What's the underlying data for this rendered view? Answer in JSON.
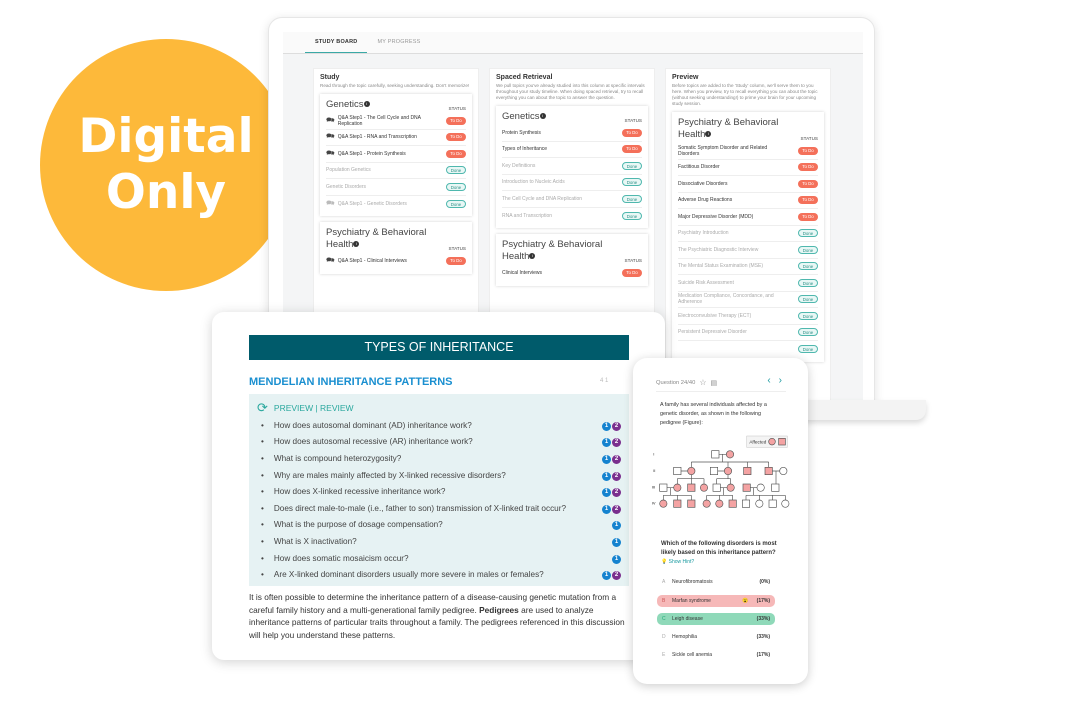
{
  "badge": {
    "line1": "Digital",
    "line2": "Only",
    "color": "#FDB93A"
  },
  "laptop": {
    "tabs": [
      {
        "label": "STUDY BOARD",
        "active": true
      },
      {
        "label": "MY PROGRESS",
        "active": false
      }
    ],
    "columns": [
      {
        "title": "Study",
        "desc": "Read through the topic carefully, seeking understanding. Don't memorize!",
        "cards": [
          {
            "title": "Genetics",
            "status_header": "STATUS",
            "items": [
              {
                "label": "Q&A Step1 - The Cell Cycle and DNA Replication",
                "qa": true,
                "status": "To Do"
              },
              {
                "label": "Q&A Step1 - RNA and Transcription",
                "qa": true,
                "status": "To Do"
              },
              {
                "label": "Q&A Step1 - Protein Synthesis",
                "qa": true,
                "status": "To Do"
              },
              {
                "label": "Population Genetics",
                "qa": false,
                "status": "Done"
              },
              {
                "label": "Genetic Disorders",
                "qa": false,
                "status": "Done"
              },
              {
                "label": "Q&A Step1 - Genetic Disorders",
                "qa": true,
                "status": "Done"
              }
            ]
          },
          {
            "title": "Psychiatry & Behavioral Health",
            "status_header": "STATUS",
            "items": [
              {
                "label": "Q&A Step1 - Clinical Interviews",
                "qa": true,
                "status": "To Do"
              }
            ]
          }
        ]
      },
      {
        "title": "Spaced Retrieval",
        "desc": "We pull topics you've already studied into this column at specific intervals throughout your study timeline. When doing spaced retrieval, try to recall everything you can about the topic to answer the question.",
        "cards": [
          {
            "title": "Genetics",
            "status_header": "STATUS",
            "items": [
              {
                "label": "Protein Synthesis",
                "qa": false,
                "status": "To Do"
              },
              {
                "label": "Types of Inheritance",
                "qa": false,
                "status": "To Do"
              },
              {
                "label": "Key Definitions",
                "qa": false,
                "status": "Done"
              },
              {
                "label": "Introduction to Nucleic Acids",
                "qa": false,
                "status": "Done"
              },
              {
                "label": "The Cell Cycle and DNA Replication",
                "qa": false,
                "status": "Done"
              },
              {
                "label": "RNA and Transcription",
                "qa": false,
                "status": "Done"
              }
            ]
          },
          {
            "title": "Psychiatry & Behavioral Health",
            "status_header": "STATUS",
            "items": [
              {
                "label": "Clinical Interviews",
                "qa": false,
                "status": "To Do"
              }
            ]
          }
        ]
      },
      {
        "title": "Preview",
        "desc": "Before topics are added to the 'Study' column, we'll serve them to you here. When you preview, try to recall everything you can about the topic (without seeking understanding!) to prime your brain for your upcoming study session.",
        "cards": [
          {
            "title": "Psychiatry & Behavioral Health",
            "status_header": "STATUS",
            "items": [
              {
                "label": "Somatic Symptom Disorder and Related Disorders",
                "qa": false,
                "status": "To Do"
              },
              {
                "label": "Factitious Disorder",
                "qa": false,
                "status": "To Do"
              },
              {
                "label": "Dissociative Disorders",
                "qa": false,
                "status": "To Do"
              },
              {
                "label": "Adverse Drug Reactions",
                "qa": false,
                "status": "To Do"
              },
              {
                "label": "Major Depressive Disorder (MDD)",
                "qa": false,
                "status": "To Do"
              },
              {
                "label": "Psychiatry Introduction",
                "qa": false,
                "status": "Done"
              },
              {
                "label": "The Psychiatric Diagnostic Interview",
                "qa": false,
                "status": "Done"
              },
              {
                "label": "The Mental Status Examination (MSE)",
                "qa": false,
                "status": "Done"
              },
              {
                "label": "Suicide Risk Assessment",
                "qa": false,
                "status": "Done"
              },
              {
                "label": "Medication Compliance, Concordance, and Adherence",
                "qa": false,
                "status": "Done"
              },
              {
                "label": "Electroconvulsive Therapy (ECT)",
                "qa": false,
                "status": "Done"
              },
              {
                "label": "Persistent Depressive Disorder",
                "qa": false,
                "status": "Done"
              },
              {
                "label": "",
                "qa": false,
                "status": "Done"
              }
            ]
          }
        ]
      }
    ]
  },
  "tablet": {
    "header": "TYPES OF INHERITANCE",
    "section": "MENDELIAN INHERITANCE PATTERNS",
    "counts": "4  1",
    "preview_review": "PREVIEW | REVIEW",
    "questions": [
      {
        "text": "How does autosomal dominant (AD) inheritance work?",
        "badges": [
          "1",
          "2"
        ]
      },
      {
        "text": "How does autosomal recessive (AR) inheritance work?",
        "badges": [
          "1",
          "2"
        ]
      },
      {
        "text": "What is compound heterozygosity?",
        "badges": [
          "1",
          "2"
        ]
      },
      {
        "text": "Why are males mainly affected by X-linked recessive disorders?",
        "badges": [
          "1",
          "2"
        ]
      },
      {
        "text": "How does X-linked recessive inheritance work?",
        "badges": [
          "1",
          "2"
        ]
      },
      {
        "text": "Does direct male-to-male (i.e., father to son) transmission of X-linked trait occur?",
        "badges": [
          "1",
          "2"
        ]
      },
      {
        "text": "What is the purpose of dosage compensation?",
        "badges": [
          "1"
        ]
      },
      {
        "text": "What is X inactivation?",
        "badges": [
          "1"
        ]
      },
      {
        "text": "How does somatic mosaicism occur?",
        "badges": [
          "1"
        ]
      },
      {
        "text": "Are X-linked dominant disorders usually more severe in males or females?",
        "badges": [
          "1",
          "2"
        ]
      }
    ],
    "para_before": "It is often possible to determine the inheritance pattern of a disease-causing genetic mutation from a careful family history and a multi-generational family pedigree. ",
    "para_bold": "Pedigrees",
    "para_after": " are used to analyze inheritance patterns of particular traits throughout a family. The pedigrees referenced in this discussion will help you understand these patterns."
  },
  "phone": {
    "question_label": "Question 24/40",
    "stem": "A family has several individuals affected by a genetic disorder, as shown in the following pedigree (Figure):",
    "legend": "Affected",
    "generations": [
      "I",
      "II",
      "III",
      "IV"
    ],
    "ask": "Which of the following disorders is most likely based on this inheritance pattern?",
    "hint": "Show Hint?",
    "options": [
      {
        "letter": "A",
        "name": "Neurofibromatosis",
        "pct": "(0%)",
        "state": "none"
      },
      {
        "letter": "B",
        "name": "Marfan syndrome",
        "pct": "(17%)",
        "state": "wrong"
      },
      {
        "letter": "C",
        "name": "Leigh disease",
        "pct": "(33%)",
        "state": "right"
      },
      {
        "letter": "D",
        "name": "Hemophilia",
        "pct": "(33%)",
        "state": "none"
      },
      {
        "letter": "E",
        "name": "Sickle cell anemia",
        "pct": "(17%)",
        "state": "none"
      }
    ]
  }
}
